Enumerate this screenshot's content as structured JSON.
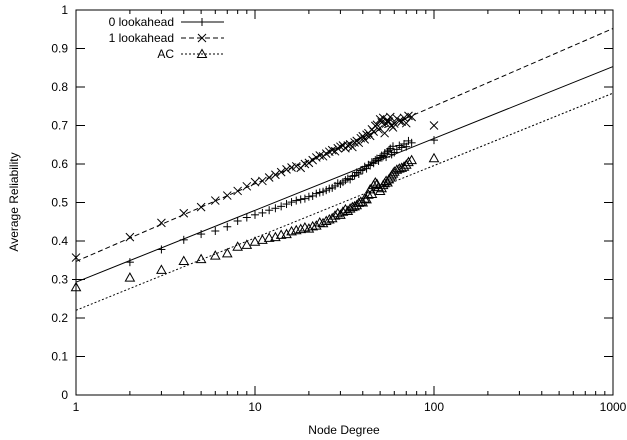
{
  "chart_data": {
    "type": "scatter",
    "title": "",
    "xlabel": "Node Degree",
    "ylabel": "Average Reliability",
    "xscale": "log",
    "xlim": [
      1,
      1000
    ],
    "ylim": [
      0,
      1
    ],
    "x_ticks": [
      {
        "value": 1,
        "label": "1"
      },
      {
        "value": 10,
        "label": "10"
      },
      {
        "value": 100,
        "label": "100"
      },
      {
        "value": 1000,
        "label": "1000"
      }
    ],
    "y_ticks": [
      {
        "value": 0,
        "label": "0"
      },
      {
        "value": 0.1,
        "label": "0.1"
      },
      {
        "value": 0.2,
        "label": "0.2"
      },
      {
        "value": 0.3,
        "label": "0.3"
      },
      {
        "value": 0.4,
        "label": "0.4"
      },
      {
        "value": 0.5,
        "label": "0.5"
      },
      {
        "value": 0.6,
        "label": "0.6"
      },
      {
        "value": 0.7,
        "label": "0.7"
      },
      {
        "value": 0.8,
        "label": "0.8"
      },
      {
        "value": 0.9,
        "label": "0.9"
      },
      {
        "value": 1,
        "label": "1"
      }
    ],
    "grid": false,
    "legend_position": "top-left",
    "series": [
      {
        "name": "0 lookahead",
        "marker": "plus",
        "line_style": "solid",
        "color": "#000000",
        "fit_line": [
          [
            1,
            0.293
          ],
          [
            1000,
            0.853
          ]
        ],
        "x": [
          1,
          2,
          3,
          4,
          5,
          6,
          7,
          8,
          9,
          10,
          11,
          12,
          13,
          14,
          15,
          16,
          17,
          18,
          19,
          20,
          21,
          22,
          23,
          24,
          25,
          26,
          27,
          28,
          29,
          30,
          31,
          32,
          33,
          34,
          35,
          36,
          37,
          38,
          39,
          40,
          41,
          42,
          43,
          44,
          45,
          46,
          47,
          48,
          49,
          50,
          51,
          52,
          53,
          54,
          55,
          56,
          57,
          58,
          59,
          60,
          62,
          64,
          66,
          68,
          70,
          72,
          75,
          100
        ],
        "y": [
          0.3,
          0.345,
          0.378,
          0.403,
          0.418,
          0.426,
          0.437,
          0.452,
          0.461,
          0.468,
          0.473,
          0.48,
          0.485,
          0.49,
          0.496,
          0.501,
          0.505,
          0.508,
          0.51,
          0.515,
          0.517,
          0.523,
          0.526,
          0.528,
          0.532,
          0.536,
          0.538,
          0.543,
          0.55,
          0.548,
          0.553,
          0.558,
          0.562,
          0.56,
          0.568,
          0.57,
          0.578,
          0.574,
          0.583,
          0.585,
          0.593,
          0.588,
          0.598,
          0.596,
          0.605,
          0.602,
          0.61,
          0.614,
          0.608,
          0.617,
          0.622,
          0.62,
          0.628,
          0.618,
          0.632,
          0.636,
          0.64,
          0.625,
          0.646,
          0.63,
          0.638,
          0.648,
          0.643,
          0.652,
          0.645,
          0.66,
          0.655,
          0.662
        ]
      },
      {
        "name": "1 lookahead",
        "marker": "cross",
        "line_style": "dashed",
        "color": "#000000",
        "fit_line": [
          [
            1,
            0.347
          ],
          [
            1000,
            0.952
          ]
        ],
        "x": [
          1,
          2,
          3,
          4,
          5,
          6,
          7,
          8,
          9,
          10,
          11,
          12,
          13,
          14,
          15,
          16,
          17,
          18,
          19,
          20,
          21,
          22,
          23,
          24,
          25,
          26,
          27,
          28,
          29,
          30,
          31,
          32,
          33,
          34,
          35,
          36,
          37,
          38,
          39,
          40,
          41,
          42,
          43,
          44,
          45,
          46,
          47,
          48,
          49,
          50,
          51,
          52,
          53,
          54,
          55,
          56,
          57,
          58,
          59,
          60,
          62,
          64,
          66,
          68,
          70,
          72,
          75,
          100
        ],
        "y": [
          0.357,
          0.41,
          0.447,
          0.472,
          0.488,
          0.505,
          0.518,
          0.53,
          0.542,
          0.553,
          0.556,
          0.565,
          0.572,
          0.579,
          0.586,
          0.591,
          0.594,
          0.59,
          0.6,
          0.603,
          0.61,
          0.617,
          0.622,
          0.62,
          0.627,
          0.632,
          0.636,
          0.633,
          0.641,
          0.645,
          0.648,
          0.641,
          0.648,
          0.651,
          0.644,
          0.656,
          0.66,
          0.655,
          0.667,
          0.672,
          0.664,
          0.676,
          0.68,
          0.673,
          0.69,
          0.684,
          0.699,
          0.702,
          0.69,
          0.716,
          0.708,
          0.72,
          0.68,
          0.705,
          0.712,
          0.71,
          0.722,
          0.7,
          0.695,
          0.705,
          0.718,
          0.712,
          0.71,
          0.72,
          0.706,
          0.725,
          0.722,
          0.7
        ]
      },
      {
        "name": "AC",
        "marker": "triangle",
        "line_style": "dotted",
        "color": "#000000",
        "fit_line": [
          [
            1,
            0.22
          ],
          [
            1000,
            0.784
          ]
        ],
        "x": [
          1,
          2,
          3,
          4,
          5,
          6,
          7,
          8,
          9,
          10,
          11,
          12,
          13,
          14,
          15,
          16,
          17,
          18,
          19,
          20,
          21,
          22,
          23,
          24,
          25,
          26,
          27,
          28,
          29,
          30,
          31,
          32,
          33,
          34,
          35,
          36,
          37,
          38,
          39,
          40,
          41,
          42,
          43,
          44,
          45,
          46,
          47,
          48,
          49,
          50,
          51,
          52,
          53,
          54,
          55,
          56,
          57,
          58,
          59,
          60,
          62,
          64,
          66,
          68,
          70,
          72,
          75,
          100
        ],
        "y": [
          0.28,
          0.305,
          0.325,
          0.348,
          0.353,
          0.362,
          0.368,
          0.385,
          0.39,
          0.398,
          0.403,
          0.408,
          0.41,
          0.416,
          0.418,
          0.425,
          0.428,
          0.431,
          0.435,
          0.432,
          0.438,
          0.44,
          0.448,
          0.446,
          0.452,
          0.456,
          0.459,
          0.466,
          0.472,
          0.468,
          0.476,
          0.482,
          0.478,
          0.484,
          0.488,
          0.49,
          0.493,
          0.499,
          0.502,
          0.5,
          0.51,
          0.508,
          0.52,
          0.534,
          0.522,
          0.545,
          0.552,
          0.548,
          0.54,
          0.53,
          0.537,
          0.545,
          0.55,
          0.556,
          0.552,
          0.56,
          0.565,
          0.57,
          0.575,
          0.58,
          0.585,
          0.588,
          0.59,
          0.593,
          0.598,
          0.605,
          0.61,
          0.615
        ]
      }
    ]
  }
}
